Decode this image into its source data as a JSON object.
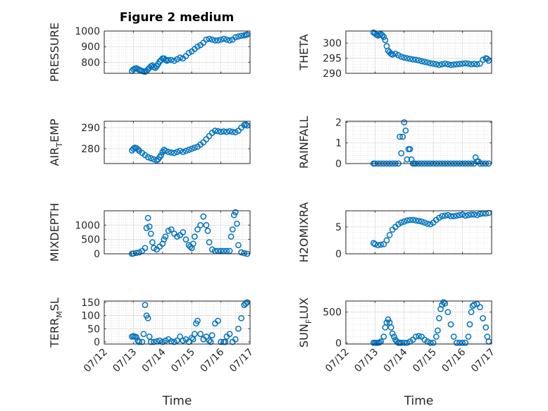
{
  "figure_title": "Figure 2 medium",
  "marker_color": "#0072BD",
  "chart_data": [
    {
      "type": "scatter",
      "ylabel_main": "PRESSURE",
      "ylabel_sub": "",
      "ylabel_tail": "",
      "xlim": [
        0,
        5
      ],
      "ylim": [
        730,
        1000
      ],
      "yticks": [
        800,
        900,
        1000
      ],
      "xticks": [],
      "xlabel": "",
      "grid": true,
      "series": [
        {
          "x": [
            0.95,
            1.0,
            1.05,
            1.1,
            1.15,
            1.2,
            1.25,
            1.3,
            1.35,
            1.4,
            1.45,
            1.5,
            1.55,
            1.6,
            1.65,
            1.7,
            1.75,
            1.8,
            1.85,
            1.9,
            1.95,
            2.0,
            2.05,
            2.1,
            2.15,
            2.2,
            2.3,
            2.4,
            2.5,
            2.6,
            2.7,
            2.8,
            2.9,
            3.0,
            3.1,
            3.2,
            3.3,
            3.4,
            3.5,
            3.6,
            3.7,
            3.8,
            3.9,
            4.0,
            4.1,
            4.2,
            4.3,
            4.4,
            4.5,
            4.6,
            4.7,
            4.8,
            4.85,
            4.9
          ],
          "y": [
            745,
            755,
            760,
            762,
            758,
            752,
            748,
            745,
            742,
            740,
            745,
            755,
            765,
            775,
            780,
            770,
            765,
            775,
            790,
            805,
            815,
            825,
            825,
            815,
            810,
            815,
            815,
            810,
            820,
            830,
            825,
            840,
            860,
            870,
            885,
            900,
            910,
            925,
            945,
            950,
            945,
            940,
            940,
            945,
            950,
            945,
            940,
            945,
            960,
            965,
            970,
            972,
            975,
            978
          ]
        }
      ]
    },
    {
      "type": "scatter",
      "ylabel_main": "THETA",
      "ylabel_sub": "",
      "ylabel_tail": "",
      "xlim": [
        0,
        5
      ],
      "ylim": [
        290,
        304
      ],
      "yticks": [
        290,
        295,
        300
      ],
      "xticks": [],
      "xlabel": "",
      "grid": true,
      "series": [
        {
          "x": [
            0.95,
            1.0,
            1.05,
            1.1,
            1.15,
            1.2,
            1.25,
            1.3,
            1.35,
            1.4,
            1.45,
            1.5,
            1.55,
            1.6,
            1.7,
            1.8,
            1.9,
            2.0,
            2.1,
            2.2,
            2.3,
            2.4,
            2.5,
            2.6,
            2.7,
            2.8,
            2.9,
            3.0,
            3.1,
            3.2,
            3.3,
            3.4,
            3.5,
            3.6,
            3.7,
            3.8,
            3.9,
            4.0,
            4.1,
            4.2,
            4.3,
            4.4,
            4.5,
            4.6,
            4.7,
            4.8,
            4.85,
            4.9
          ],
          "y": [
            303.5,
            303.2,
            302.8,
            302.5,
            302.8,
            303.0,
            302.6,
            302.0,
            301.0,
            299.0,
            297.5,
            297.0,
            296.5,
            296.2,
            296.5,
            296.0,
            295.5,
            295.2,
            295.0,
            294.8,
            294.6,
            294.5,
            294.3,
            294.0,
            293.8,
            293.6,
            293.3,
            293.2,
            293.0,
            292.8,
            293.0,
            293.2,
            293.0,
            292.8,
            292.9,
            293.0,
            293.1,
            293.2,
            293.3,
            293.2,
            293.0,
            293.1,
            293.0,
            293.2,
            294.5,
            295.0,
            294.8,
            294.2
          ]
        }
      ]
    },
    {
      "type": "scatter",
      "ylabel_main": "AIR",
      "ylabel_sub": "T",
      "ylabel_tail": "EMP",
      "xlim": [
        0,
        5
      ],
      "ylim": [
        273,
        293
      ],
      "yticks": [
        280,
        290
      ],
      "xticks": [],
      "xlabel": "",
      "grid": true,
      "series": [
        {
          "x": [
            0.95,
            1.0,
            1.05,
            1.1,
            1.15,
            1.2,
            1.3,
            1.4,
            1.5,
            1.6,
            1.7,
            1.8,
            1.85,
            1.9,
            1.95,
            2.0,
            2.05,
            2.1,
            2.2,
            2.3,
            2.4,
            2.5,
            2.6,
            2.7,
            2.8,
            2.9,
            3.0,
            3.1,
            3.2,
            3.3,
            3.4,
            3.5,
            3.6,
            3.7,
            3.8,
            3.9,
            4.0,
            4.1,
            4.2,
            4.3,
            4.4,
            4.5,
            4.6,
            4.7,
            4.8,
            4.85,
            4.9
          ],
          "y": [
            279.2,
            280.0,
            280.5,
            280.3,
            279.8,
            279.0,
            278.0,
            277.0,
            276.0,
            275.5,
            275.0,
            274.5,
            275.0,
            276.0,
            277.0,
            278.5,
            279.5,
            279.0,
            278.5,
            278.2,
            278.0,
            278.5,
            279.0,
            278.5,
            279.0,
            279.5,
            280.0,
            280.5,
            281.0,
            282.0,
            283.0,
            284.5,
            286.0,
            287.5,
            288.5,
            288.3,
            288.0,
            288.2,
            288.0,
            288.3,
            288.0,
            287.8,
            288.5,
            290.0,
            291.2,
            291.5,
            291.0
          ]
        }
      ]
    },
    {
      "type": "scatter",
      "ylabel_main": "RAINFALL",
      "ylabel_sub": "",
      "ylabel_tail": "",
      "xlim": [
        0,
        5
      ],
      "ylim": [
        0,
        2.05
      ],
      "yticks": [
        0,
        1,
        2
      ],
      "xticks": [],
      "xlabel": "",
      "grid": true,
      "series": [
        {
          "x": [
            0.95,
            1.0,
            1.1,
            1.2,
            1.3,
            1.4,
            1.5,
            1.6,
            1.7,
            1.8,
            1.85,
            1.9,
            1.95,
            2.0,
            2.05,
            2.1,
            2.15,
            2.2,
            2.25,
            2.3,
            2.35,
            2.4,
            2.5,
            2.6,
            2.7,
            2.8,
            2.9,
            3.0,
            3.1,
            3.2,
            3.3,
            3.4,
            3.5,
            3.6,
            3.7,
            3.8,
            3.9,
            4.0,
            4.1,
            4.2,
            4.3,
            4.4,
            4.45,
            4.5,
            4.55,
            4.6,
            4.7,
            4.8,
            4.9
          ],
          "y": [
            0,
            0,
            0,
            0,
            0,
            0,
            0,
            0,
            0,
            0,
            1.3,
            0.5,
            1.3,
            2.0,
            1.6,
            0.2,
            0.7,
            0.7,
            0.2,
            0,
            0,
            0,
            0,
            0,
            0,
            0,
            0,
            0,
            0,
            0,
            0,
            0,
            0,
            0,
            0,
            0,
            0,
            0,
            0,
            0,
            0,
            0,
            0.3,
            0.1,
            0.1,
            0,
            0,
            0,
            0
          ]
        }
      ]
    },
    {
      "type": "scatter",
      "ylabel_main": "MIXDEPTH",
      "ylabel_sub": "",
      "ylabel_tail": "",
      "xlim": [
        0,
        5
      ],
      "ylim": [
        0,
        1500
      ],
      "yticks": [
        0,
        500,
        1000
      ],
      "xticks": [],
      "xlabel": "",
      "grid": true,
      "series": [
        {
          "x": [
            0.95,
            1.0,
            1.1,
            1.2,
            1.3,
            1.4,
            1.45,
            1.5,
            1.55,
            1.6,
            1.65,
            1.7,
            1.8,
            1.9,
            2.0,
            2.05,
            2.1,
            2.2,
            2.3,
            2.4,
            2.5,
            2.6,
            2.7,
            2.8,
            2.9,
            2.95,
            3.0,
            3.05,
            3.1,
            3.2,
            3.3,
            3.4,
            3.5,
            3.55,
            3.6,
            3.7,
            3.8,
            3.9,
            4.0,
            4.1,
            4.2,
            4.3,
            4.35,
            4.4,
            4.45,
            4.5,
            4.55,
            4.6,
            4.7,
            4.8,
            4.9
          ],
          "y": [
            0,
            10,
            30,
            50,
            100,
            200,
            900,
            1250,
            950,
            700,
            400,
            200,
            150,
            250,
            350,
            500,
            600,
            800,
            850,
            700,
            600,
            650,
            750,
            500,
            300,
            250,
            200,
            350,
            600,
            850,
            1000,
            1300,
            1000,
            800,
            400,
            150,
            100,
            100,
            100,
            100,
            100,
            100,
            600,
            850,
            1350,
            1450,
            1050,
            300,
            50,
            20,
            0
          ]
        }
      ]
    },
    {
      "type": "scatter",
      "ylabel_main": "H2OMIXRA",
      "ylabel_sub": "",
      "ylabel_tail": "",
      "xlim": [
        0,
        5
      ],
      "ylim": [
        0,
        8
      ],
      "yticks": [
        0,
        5
      ],
      "xticks": [],
      "xlabel": "",
      "grid": true,
      "series": [
        {
          "x": [
            0.95,
            1.0,
            1.1,
            1.2,
            1.3,
            1.4,
            1.5,
            1.6,
            1.7,
            1.8,
            1.9,
            2.0,
            2.1,
            2.2,
            2.3,
            2.4,
            2.5,
            2.6,
            2.7,
            2.8,
            2.9,
            3.0,
            3.1,
            3.2,
            3.3,
            3.4,
            3.5,
            3.6,
            3.7,
            3.8,
            3.9,
            4.0,
            4.1,
            4.2,
            4.3,
            4.4,
            4.5,
            4.6,
            4.7,
            4.8,
            4.9
          ],
          "y": [
            2.0,
            1.8,
            1.6,
            1.7,
            1.8,
            2.5,
            3.5,
            4.5,
            5.0,
            5.5,
            5.8,
            6.0,
            6.2,
            6.3,
            6.3,
            6.2,
            6.1,
            6.0,
            5.8,
            5.6,
            5.5,
            5.8,
            6.3,
            6.7,
            7.0,
            7.1,
            7.2,
            7.0,
            7.0,
            7.1,
            7.2,
            7.3,
            7.1,
            7.2,
            7.3,
            7.3,
            7.2,
            7.4,
            7.5,
            7.5,
            7.6
          ]
        }
      ]
    },
    {
      "type": "scatter",
      "ylabel_main": "TERR",
      "ylabel_sub": "M",
      "ylabel_tail": "SL",
      "xlim": [
        0,
        5
      ],
      "ylim": [
        -8,
        155
      ],
      "yticks": [
        0,
        50,
        100,
        150
      ],
      "xticks": [
        "07/12",
        "07/13",
        "07/14",
        "07/15",
        "07/16",
        "07/17"
      ],
      "xlabel": "Time",
      "grid": true,
      "series": [
        {
          "x": [
            0.95,
            1.0,
            1.05,
            1.1,
            1.15,
            1.2,
            1.3,
            1.35,
            1.4,
            1.45,
            1.5,
            1.55,
            1.6,
            1.7,
            1.8,
            1.9,
            2.0,
            2.1,
            2.2,
            2.3,
            2.4,
            2.5,
            2.6,
            2.7,
            2.8,
            2.9,
            3.0,
            3.05,
            3.1,
            3.15,
            3.2,
            3.3,
            3.4,
            3.5,
            3.6,
            3.65,
            3.7,
            3.8,
            3.9,
            4.0,
            4.1,
            4.15,
            4.2,
            4.3,
            4.4,
            4.5,
            4.6,
            4.7,
            4.8,
            4.85,
            4.9
          ],
          "y": [
            20,
            22,
            20,
            18,
            5,
            0,
            0,
            30,
            140,
            100,
            90,
            20,
            0,
            0,
            2,
            5,
            0,
            5,
            10,
            2,
            0,
            5,
            20,
            5,
            10,
            0,
            15,
            10,
            30,
            70,
            80,
            30,
            10,
            20,
            5,
            0,
            25,
            70,
            80,
            0,
            0,
            0,
            20,
            30,
            0,
            10,
            50,
            90,
            140,
            145,
            150
          ]
        }
      ]
    },
    {
      "type": "scatter",
      "ylabel_main": "SUN",
      "ylabel_sub": "F",
      "ylabel_tail": "LUX",
      "xlim": [
        0,
        5
      ],
      "ylim": [
        -20,
        680
      ],
      "yticks": [
        0,
        500
      ],
      "xticks": [
        "07/12",
        "07/13",
        "07/14",
        "07/15",
        "07/16",
        "07/17"
      ],
      "xlabel": "Time",
      "grid": true,
      "series": [
        {
          "x": [
            0.95,
            1.0,
            1.05,
            1.1,
            1.15,
            1.2,
            1.3,
            1.35,
            1.4,
            1.45,
            1.5,
            1.55,
            1.6,
            1.65,
            1.7,
            1.75,
            1.8,
            1.85,
            1.9,
            2.0,
            2.1,
            2.2,
            2.3,
            2.4,
            2.5,
            2.6,
            2.7,
            2.8,
            2.9,
            3.0,
            3.1,
            3.15,
            3.2,
            3.25,
            3.3,
            3.35,
            3.4,
            3.5,
            3.6,
            3.7,
            3.8,
            3.9,
            4.0,
            4.1,
            4.2,
            4.25,
            4.3,
            4.35,
            4.4,
            4.5,
            4.6,
            4.7,
            4.8,
            4.85,
            4.9
          ],
          "y": [
            0,
            0,
            0,
            0,
            5,
            20,
            100,
            250,
            330,
            380,
            330,
            250,
            150,
            100,
            50,
            20,
            0,
            0,
            0,
            0,
            0,
            20,
            50,
            100,
            110,
            100,
            50,
            20,
            0,
            0,
            100,
            200,
            400,
            550,
            620,
            660,
            640,
            500,
            300,
            100,
            0,
            0,
            0,
            0,
            100,
            300,
            500,
            600,
            620,
            630,
            580,
            400,
            250,
            100,
            20
          ]
        }
      ]
    }
  ]
}
